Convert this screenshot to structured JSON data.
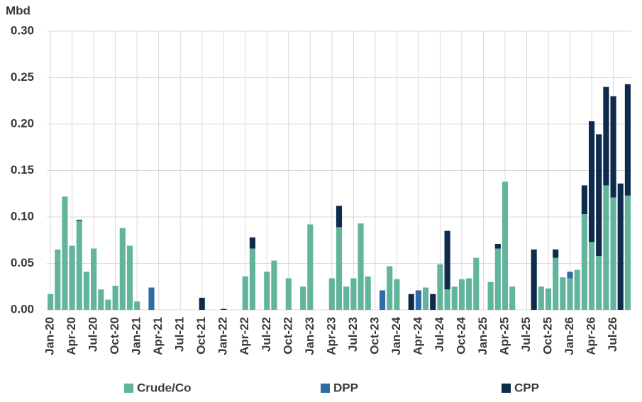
{
  "chart_data": {
    "type": "stacked_bar",
    "y_label": "Mbd",
    "categories": [
      "Jan-20",
      null,
      null,
      "Apr-20",
      null,
      null,
      "Jul-20",
      null,
      null,
      "Oct-20",
      null,
      null,
      "Jan-21",
      null,
      null,
      "Apr-21",
      null,
      null,
      "Jul-21",
      null,
      null,
      "Oct-21",
      null,
      null,
      "Jan-22",
      null,
      null,
      "Apr-22",
      null,
      null,
      "Jul-22",
      null,
      null,
      "Oct-22",
      null,
      null,
      "Jan-23",
      null,
      null,
      "Apr-23",
      null,
      null,
      "Jul-23",
      null,
      null,
      "Oct-23",
      null,
      null,
      "Jan-24",
      null,
      null,
      "Apr-24",
      null,
      null,
      "Jul-24",
      null,
      null,
      "Oct-24",
      null,
      null,
      "Jan-25",
      null,
      null,
      "Apr-25",
      null,
      null,
      "Jul-25",
      null,
      null,
      "Oct-25",
      null,
      null,
      "Jan-26",
      null,
      null,
      "Apr-26",
      null,
      null,
      "Jul-26",
      null,
      null
    ],
    "series": [
      {
        "name": "Crude/Co",
        "color": "#62b59c",
        "values": [
          0.017,
          0.065,
          0.122,
          0.069,
          0.096,
          0.041,
          0.066,
          0.022,
          0.011,
          0.026,
          0.088,
          0.069,
          0.009,
          0,
          0,
          0,
          0,
          0,
          0,
          0,
          0,
          0,
          0,
          0,
          0,
          0,
          0,
          0.036,
          0.066,
          0,
          0.041,
          0.053,
          0,
          0.034,
          0,
          0.025,
          0.092,
          0,
          0,
          0.034,
          0.089,
          0.025,
          0.034,
          0.093,
          0.036,
          0,
          0,
          0.047,
          0.033,
          0,
          0,
          0,
          0.024,
          0,
          0.049,
          0.022,
          0.025,
          0.033,
          0.034,
          0.056,
          0,
          0.03,
          0.066,
          0.138,
          0.025,
          0,
          0,
          0,
          0.025,
          0.023,
          0.056,
          0.035,
          0.034,
          0.043,
          0.103,
          0.073,
          0.058,
          0.134,
          0.121,
          0,
          0.123
        ]
      },
      {
        "name": "DPP",
        "color": "#2e6ca3",
        "values": [
          0,
          0,
          0,
          0,
          0,
          0,
          0,
          0,
          0,
          0,
          0,
          0,
          0,
          0,
          0.024,
          0,
          0,
          0,
          0,
          0,
          0,
          0,
          0,
          0,
          0,
          0,
          0,
          0,
          0,
          0,
          0,
          0,
          0,
          0,
          0,
          0,
          0,
          0,
          0,
          0,
          0,
          0,
          0,
          0,
          0,
          0,
          0.021,
          0,
          0,
          0,
          0,
          0.021,
          0,
          0,
          0,
          0,
          0,
          0,
          0,
          0,
          0,
          0,
          0,
          0,
          0,
          0,
          0,
          0,
          0,
          0,
          0,
          0,
          0.007,
          0,
          0,
          0,
          0,
          0,
          0,
          0,
          0
        ]
      },
      {
        "name": "CPP",
        "color": "#0e2a4d",
        "values": [
          0,
          0,
          0,
          0,
          0.001,
          0,
          0,
          0,
          0,
          0,
          0,
          0,
          0,
          0,
          0,
          0,
          0,
          0,
          0,
          0,
          0,
          0.013,
          0,
          0,
          0.001,
          0,
          0,
          0,
          0.012,
          0,
          0,
          0,
          0,
          0,
          0,
          0,
          0,
          0,
          0,
          0,
          0.023,
          0,
          0,
          0,
          0,
          0,
          0,
          0,
          0,
          0,
          0.017,
          0,
          0,
          0.017,
          0,
          0.063,
          0,
          0,
          0,
          0,
          0,
          0,
          0.005,
          0,
          0,
          0,
          0,
          0.065,
          0,
          0,
          0.009,
          0,
          0,
          0,
          0.031,
          0.13,
          0.131,
          0.106,
          0.109,
          0.136,
          0.12
        ]
      }
    ],
    "ylim": [
      0,
      0.3
    ],
    "yticks": [
      {
        "value": 0,
        "label": "0.00"
      },
      {
        "value": 0.05,
        "label": "0.05"
      },
      {
        "value": 0.1,
        "label": "0.10"
      },
      {
        "value": 0.15,
        "label": "0.15"
      },
      {
        "value": 0.2,
        "label": "0.20"
      },
      {
        "value": 0.25,
        "label": "0.25"
      },
      {
        "value": 0.3,
        "label": "0.30"
      }
    ],
    "grid": true,
    "legend": "bottom"
  }
}
